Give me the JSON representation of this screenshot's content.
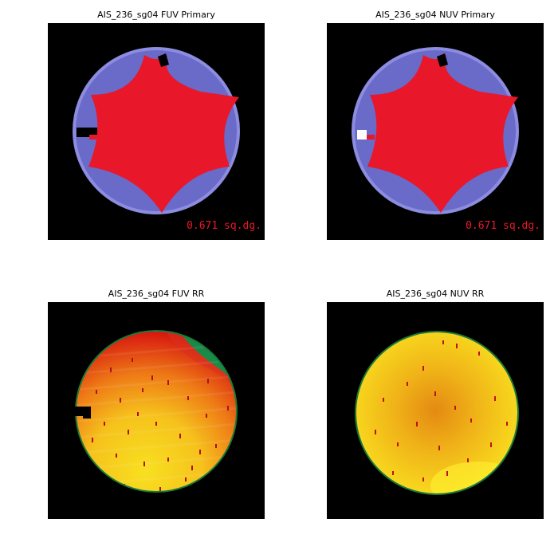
{
  "panels": [
    {
      "id": "fuv-primary",
      "title": "AIS_236_sg04 FUV Primary",
      "area_label": "0.671 sq.dg."
    },
    {
      "id": "nuv-primary",
      "title": "AIS_236_sg04 NUV Primary",
      "area_label": "0.671 sq.dg."
    },
    {
      "id": "fuv-rr",
      "title": "AIS_236_sg04 FUV RR"
    },
    {
      "id": "nuv-rr",
      "title": "AIS_236_sg04 NUV RR"
    }
  ],
  "colors": {
    "background": "#000000",
    "field_disk": "#6a6ac8",
    "field_rim": "#8c8ce0",
    "primary_region": "#e8172a",
    "rr_rim": "#1a7a3a",
    "rr_red": "#d81a10",
    "rr_yellow": "#f8e020",
    "rr_green": "#1a9a50"
  }
}
